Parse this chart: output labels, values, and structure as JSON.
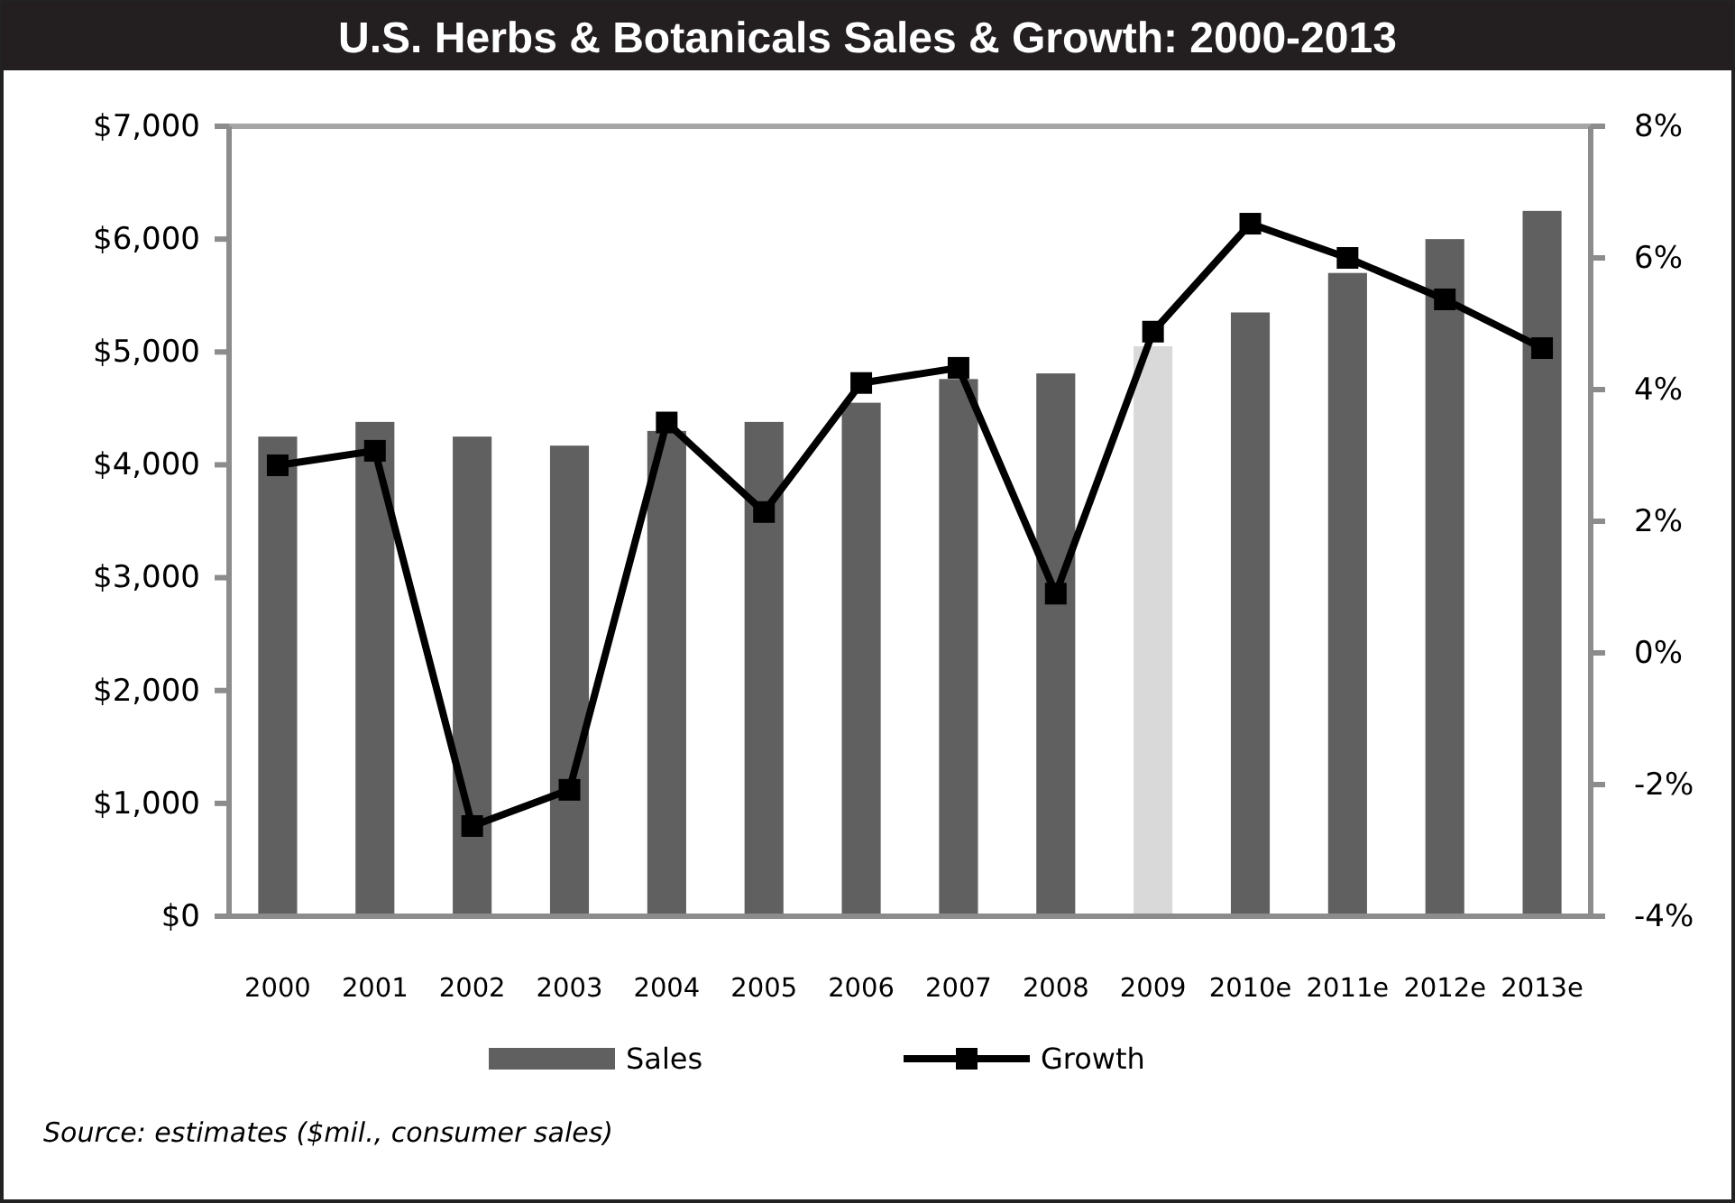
{
  "chart_data": {
    "type": "bar",
    "title": "U.S. Herbs & Botanicals Sales & Growth: 2000-2013",
    "categories": [
      "2000",
      "2001",
      "2002",
      "2003",
      "2004",
      "2005",
      "2006",
      "2007",
      "2008",
      "2009",
      "2010e",
      "2011e",
      "2012e",
      "2013e"
    ],
    "series": [
      {
        "name": "Sales",
        "color": "#606060",
        "colors": [
          "#606060",
          "#606060",
          "#606060",
          "#606060",
          "#606060",
          "#606060",
          "#606060",
          "#606060",
          "#606060",
          "#d9d9d9",
          "#606060",
          "#606060",
          "#606060",
          "#606060"
        ],
        "values": [
          4250,
          4380,
          4250,
          4170,
          4300,
          4380,
          4550,
          4760,
          4810,
          5050,
          5350,
          5700,
          6000,
          6250
        ]
      },
      {
        "name": "Growth",
        "type": "line",
        "axis": "y2",
        "color": "#000000",
        "marker": "square",
        "values": [
          2.85,
          3.07,
          -2.63,
          -2.08,
          3.5,
          2.14,
          4.1,
          4.33,
          0.9,
          4.88,
          6.52,
          6.0,
          5.37,
          4.63
        ]
      }
    ],
    "ylim": [
      0,
      7000
    ],
    "yticks": [
      {
        "value": 0,
        "label": "$0"
      },
      {
        "value": 1000,
        "label": "$1,000"
      },
      {
        "value": 2000,
        "label": "$2,000"
      },
      {
        "value": 3000,
        "label": "$3,000"
      },
      {
        "value": 4000,
        "label": "$4,000"
      },
      {
        "value": 5000,
        "label": "$5,000"
      },
      {
        "value": 6000,
        "label": "$6,000"
      },
      {
        "value": 7000,
        "label": "$7,000"
      }
    ],
    "y2lim": [
      -4,
      8
    ],
    "y2ticks": [
      {
        "value": -4,
        "label": "-4%"
      },
      {
        "value": -2,
        "label": "-2%"
      },
      {
        "value": 0,
        "label": "0%"
      },
      {
        "value": 2,
        "label": "2%"
      },
      {
        "value": 4,
        "label": "4%"
      },
      {
        "value": 6,
        "label": "6%"
      },
      {
        "value": 8,
        "label": "8%"
      }
    ],
    "legend": "bottom",
    "annotations": [
      "Source: estimates ($mil., consumer sales)"
    ]
  }
}
